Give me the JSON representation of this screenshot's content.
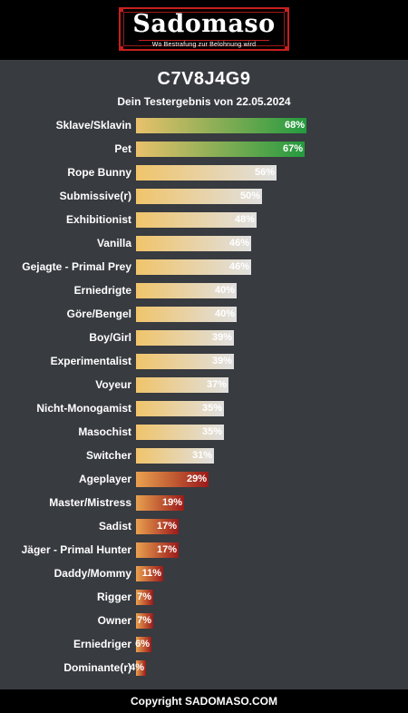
{
  "header": {
    "logo_text": "Sadomaso",
    "tagline": "Wo Bestrafung zur Belohnung wird"
  },
  "title": "C7V8J4G9",
  "subtitle": "Dein Testergebnis von 22.05.2024",
  "footer": "Copyright SADOMASO.COM",
  "colors": {
    "background": "#383b40",
    "high_gradient": [
      "#e9c16b",
      "#239a3f"
    ],
    "mid_gradient": [
      "#f0c46a",
      "#e0e0e0"
    ],
    "low_gradient": [
      "#e9a14f",
      "#9b1a1a"
    ]
  },
  "chart_data": {
    "type": "bar",
    "orientation": "horizontal",
    "value_unit": "%",
    "xlim": [
      0,
      100
    ],
    "categories": [
      "Sklave/Sklavin",
      "Pet",
      "Rope Bunny",
      "Submissive(r)",
      "Exhibitionist",
      "Vanilla",
      "Gejagte - Primal Prey",
      "Erniedrigte",
      "Göre/Bengel",
      "Boy/Girl",
      "Experimentalist",
      "Voyeur",
      "Nicht-Monogamist",
      "Masochist",
      "Switcher",
      "Ageplayer",
      "Master/Mistress",
      "Sadist",
      "Jäger - Primal Hunter",
      "Daddy/Mommy",
      "Rigger",
      "Owner",
      "Erniedriger",
      "Dominante(r)"
    ],
    "values": [
      68,
      67,
      56,
      50,
      48,
      46,
      46,
      40,
      40,
      39,
      39,
      37,
      35,
      35,
      31,
      29,
      19,
      17,
      17,
      11,
      7,
      7,
      6,
      4
    ],
    "value_labels": [
      "68%",
      "67%",
      "56%",
      "50%",
      "48%",
      "46%",
      "46%",
      "40%",
      "40%",
      "39%",
      "39%",
      "37%",
      "35%",
      "35%",
      "31%",
      "29%",
      "19%",
      "17%",
      "17%",
      "11%",
      "7%",
      "7%",
      "6%",
      "4%"
    ]
  }
}
